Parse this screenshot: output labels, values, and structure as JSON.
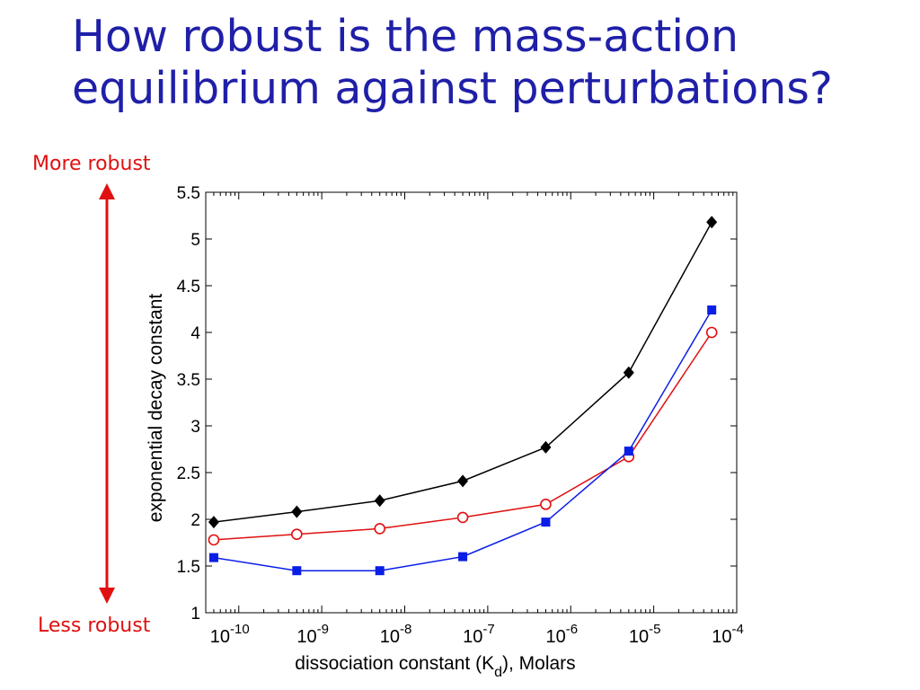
{
  "slide": {
    "title_line1": "How robust is the mass-action",
    "title_line2": "equilibrium against perturbations?",
    "more_robust": "More robust",
    "less_robust": "Less robust"
  },
  "colors": {
    "title": "#1f1fa8",
    "arrow": "#e01010",
    "series_black": "#000000",
    "series_red": "#e01010",
    "series_blue": "#0a1ee6"
  },
  "chart_data": {
    "type": "line",
    "title": "",
    "xlabel": "dissociation constant (K_d), Molars",
    "ylabel": "exponential decay constant",
    "xscale": "log",
    "xlim": [
      4e-11,
      0.0001
    ],
    "ylim": [
      1,
      5.5
    ],
    "x_tick_labels": [
      "10^-10",
      "10^-9",
      "10^-8",
      "10^-7",
      "10^-6",
      "10^-5",
      "10^-4"
    ],
    "y_ticks": [
      1,
      1.5,
      2,
      2.5,
      3,
      3.5,
      4,
      4.5,
      5,
      5.5
    ],
    "x": [
      5e-11,
      5e-10,
      5e-09,
      5e-08,
      5e-07,
      5e-06,
      5e-05
    ],
    "series": [
      {
        "marker": "diamond-filled",
        "color": "#000000",
        "values": [
          1.97,
          2.08,
          2.2,
          2.41,
          2.77,
          3.57,
          5.18
        ]
      },
      {
        "marker": "circle-open",
        "color": "#e01010",
        "values": [
          1.78,
          1.84,
          1.9,
          2.02,
          2.16,
          2.67,
          4.0
        ]
      },
      {
        "marker": "square-filled",
        "color": "#0a1ee6",
        "values": [
          1.59,
          1.45,
          1.45,
          1.6,
          1.97,
          2.73,
          4.24
        ]
      }
    ],
    "grid": false,
    "legend": "none"
  }
}
